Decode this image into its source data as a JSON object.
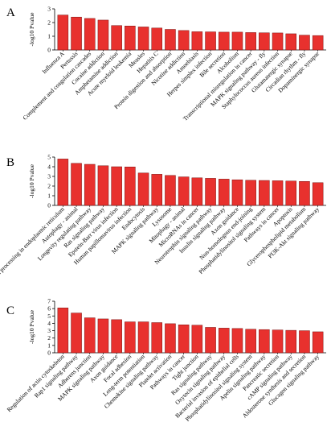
{
  "chart_data": [
    {
      "type": "bar",
      "panel_label": "A",
      "ylabel": "-log10 Pvalue",
      "ylim": [
        0,
        3
      ],
      "yticks": [
        0,
        1,
        2,
        3
      ],
      "bar_color": "#e8312e",
      "categories": [
        "Influenza A",
        "Pertussis",
        "Complement and coagulation cascades",
        "Cocaine addiction",
        "Amphetamine addiction",
        "Acute myeloid leukemia",
        "Measles",
        "Hepatitis C",
        "Protein digestion and absorption",
        "Nicotine addiction",
        "Amoebiasis",
        "Herpes simplex infection",
        "Bile secretion",
        "Alcoholism",
        "Transcriptional misregulation in cancer",
        "MAPK signaling pathway - fly",
        "Staphylococcus aureus infection",
        "Glutamatergic synapse",
        "Circadian rhythm - fly",
        "Dopaminergic synapse"
      ],
      "values": [
        2.55,
        2.4,
        2.3,
        2.18,
        1.78,
        1.75,
        1.68,
        1.6,
        1.5,
        1.42,
        1.33,
        1.32,
        1.3,
        1.3,
        1.27,
        1.25,
        1.24,
        1.18,
        1.08,
        1.05
      ]
    },
    {
      "type": "bar",
      "panel_label": "B",
      "ylabel": "-log10 Pvalue",
      "ylim": [
        0,
        5
      ],
      "yticks": [
        0,
        1,
        2,
        3,
        4,
        5
      ],
      "bar_color": "#e8312e",
      "categories": [
        "Protein processing in endoplasmic reticulum",
        "Autophagy - animal",
        "Longevity regulating pathway",
        "Ras signaling pathway",
        "Epstein-Barr virus infection",
        "Human papillomavirus infection",
        "Endocytosis",
        "MAPK signaling pathway",
        "Lysosome",
        "Mitophagy - animal",
        "MicroRNAs in cancer",
        "Neurotrophin signaling pathway",
        "Insulin signaling pathway",
        "Axon guidance",
        "Non-homologous end-joining",
        "Phosphatidylinositol signaling system",
        "Pathways in cancer",
        "Apoptosis",
        "Glycerophospholipid metabolism",
        "PI3K-Akt signaling pathway"
      ],
      "values": [
        4.8,
        4.35,
        4.25,
        4.1,
        4.0,
        3.98,
        3.35,
        3.22,
        3.1,
        2.95,
        2.85,
        2.8,
        2.72,
        2.65,
        2.6,
        2.58,
        2.55,
        2.52,
        2.48,
        2.35
      ]
    },
    {
      "type": "bar",
      "panel_label": "C",
      "ylabel": "-log10 Pvalue",
      "ylim": [
        0,
        7
      ],
      "yticks": [
        0,
        1,
        2,
        3,
        4,
        5,
        6,
        7
      ],
      "bar_color": "#e8312e",
      "categories": [
        "Regulation of actin cytoskeleton",
        "Rap1 signaling pathway",
        "Adherens junction",
        "MAPK signaling pathway",
        "Axon guidance",
        "Focal adhesion",
        "Long-term potentiation",
        "Chemokine signaling pathway",
        "Platelet activation",
        "Pathways in cancer",
        "Tight junction",
        "Ras signaling pathway",
        "Oxytocin signaling pathway",
        "Bacterial invasion of epithelial cells",
        "Phosphatidylinositol signaling system",
        "Apelin signaling pathway",
        "Pancreatic secretion",
        "cAMP signaling pathway",
        "Aldosterone synthesis and secretion",
        "Glucagon signaling pathway"
      ],
      "values": [
        6.1,
        5.4,
        4.75,
        4.6,
        4.5,
        4.2,
        4.2,
        4.1,
        3.95,
        3.8,
        3.75,
        3.45,
        3.35,
        3.3,
        3.2,
        3.15,
        3.1,
        3.05,
        3.0,
        2.85
      ]
    }
  ]
}
